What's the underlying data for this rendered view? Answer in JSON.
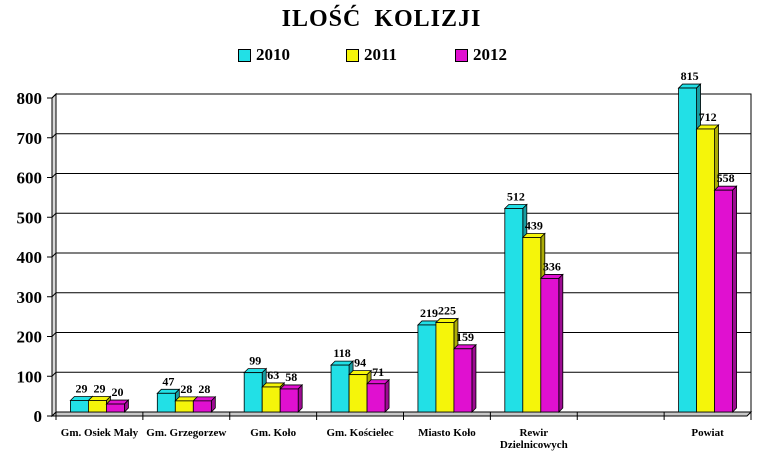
{
  "chart_data": {
    "type": "bar",
    "title": "ILOŚĆ  KOLIZJI",
    "categories": [
      [
        "Gm. Osiek Mały"
      ],
      [
        "Gm. Grzegorzew"
      ],
      [
        "Gm. Koło"
      ],
      [
        "Gm. Kościelec"
      ],
      [
        "Miasto Koło"
      ],
      [
        "Rewir",
        "Dzielnicowych"
      ],
      [
        ""
      ],
      [
        "Powiat"
      ]
    ],
    "series": [
      {
        "name": "2010",
        "color": "#22e0e6",
        "values": [
          29,
          47,
          99,
          118,
          219,
          512,
          null,
          815
        ]
      },
      {
        "name": "2011",
        "color": "#f5f50a",
        "values": [
          29,
          28,
          63,
          94,
          225,
          439,
          null,
          712
        ]
      },
      {
        "name": "2012",
        "color": "#e010d0",
        "values": [
          20,
          28,
          58,
          71,
          159,
          336,
          null,
          558
        ]
      }
    ],
    "ylim": [
      0,
      800
    ],
    "yticks": [
      0,
      100,
      200,
      300,
      400,
      500,
      600,
      700,
      800
    ],
    "grid": true,
    "legend": "top"
  }
}
